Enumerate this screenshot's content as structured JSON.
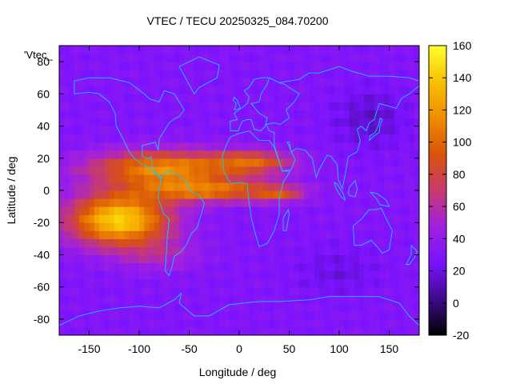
{
  "chart_data": {
    "type": "heatmap",
    "title": "VTEC / TECU 20250325_084.70200",
    "xlabel": "Longitude / deg",
    "ylabel": "Latitude / deg",
    "key_label": "'Vtec_",
    "xlim": [
      -180,
      180
    ],
    "ylim": [
      -90,
      90
    ],
    "xticks": [
      -150,
      -100,
      -50,
      0,
      50,
      100,
      150
    ],
    "yticks": [
      -80,
      -60,
      -40,
      -20,
      0,
      20,
      40,
      60,
      80
    ],
    "colorbar": {
      "range": [
        -20,
        160
      ],
      "ticks": [
        -20,
        0,
        20,
        40,
        60,
        80,
        100,
        120,
        140,
        160
      ],
      "palette": [
        "#000000",
        "#3d0b8a",
        "#7a12ff",
        "#a020e0",
        "#c73a6e",
        "#d9540a",
        "#ef8c00",
        "#f8c000",
        "#ffff30"
      ]
    },
    "grid_step_deg": 5,
    "background_vtec": 30,
    "features": [
      {
        "name": "south-america-peak",
        "lon": -120,
        "lat": -18,
        "amplitude": 115,
        "sigma_lon": 50,
        "sigma_lat": 16
      },
      {
        "name": "north-equatorial-band",
        "lon": -75,
        "lat": 14,
        "amplitude": 85,
        "sigma_lon": 75,
        "sigma_lat": 11
      },
      {
        "name": "equatorial-band",
        "lon": -30,
        "lat": 0,
        "amplitude": 70,
        "sigma_lon": 70,
        "sigma_lat": 7
      },
      {
        "name": "africa-north-tongue",
        "lon": 15,
        "lat": 18,
        "amplitude": 55,
        "sigma_lon": 40,
        "sigma_lat": 7
      },
      {
        "name": "africa-equatorial-tongue",
        "lon": 40,
        "lat": -2,
        "amplitude": 40,
        "sigma_lon": 25,
        "sigma_lat": 5
      },
      {
        "name": "southern-hemisphere-arc",
        "lon": -80,
        "lat": -40,
        "amplitude": 22,
        "sigma_lon": 40,
        "sigma_lat": 10
      },
      {
        "name": "east-asia-low",
        "lon": 130,
        "lat": 45,
        "amplitude": -15,
        "sigma_lon": 35,
        "sigma_lat": 18
      },
      {
        "name": "south-indian-low",
        "lon": 100,
        "lat": -50,
        "amplitude": -10,
        "sigma_lon": 40,
        "sigma_lat": 15
      }
    ],
    "coastlines": [
      {
        "name": "north-america",
        "points": [
          [
            -165,
            60
          ],
          [
            -150,
            61
          ],
          [
            -140,
            60
          ],
          [
            -130,
            55
          ],
          [
            -124,
            48
          ],
          [
            -123,
            40
          ],
          [
            -117,
            33
          ],
          [
            -110,
            24
          ],
          [
            -105,
            20
          ],
          [
            -97,
            16
          ],
          [
            -92,
            15
          ],
          [
            -85,
            11
          ],
          [
            -80,
            8
          ],
          [
            -77,
            8
          ],
          [
            -82,
            10
          ],
          [
            -87,
            15
          ],
          [
            -88,
            21
          ],
          [
            -90,
            20
          ],
          [
            -97,
            21
          ],
          [
            -97,
            28
          ],
          [
            -90,
            29
          ],
          [
            -84,
            30
          ],
          [
            -81,
            25
          ],
          [
            -80,
            32
          ],
          [
            -75,
            37
          ],
          [
            -70,
            42
          ],
          [
            -66,
            44
          ],
          [
            -60,
            46
          ],
          [
            -55,
            50
          ],
          [
            -60,
            55
          ],
          [
            -65,
            60
          ],
          [
            -75,
            62
          ],
          [
            -80,
            55
          ],
          [
            -90,
            57
          ],
          [
            -95,
            60
          ],
          [
            -110,
            67
          ],
          [
            -130,
            70
          ],
          [
            -150,
            70
          ],
          [
            -165,
            68
          ],
          [
            -165,
            60
          ]
        ]
      },
      {
        "name": "south-america",
        "points": [
          [
            -78,
            8
          ],
          [
            -72,
            12
          ],
          [
            -63,
            10
          ],
          [
            -52,
            5
          ],
          [
            -50,
            0
          ],
          [
            -40,
            -3
          ],
          [
            -35,
            -8
          ],
          [
            -38,
            -15
          ],
          [
            -42,
            -23
          ],
          [
            -48,
            -27
          ],
          [
            -53,
            -34
          ],
          [
            -58,
            -38
          ],
          [
            -65,
            -41
          ],
          [
            -67,
            -47
          ],
          [
            -70,
            -53
          ],
          [
            -74,
            -50
          ],
          [
            -73,
            -40
          ],
          [
            -72,
            -30
          ],
          [
            -70,
            -18
          ],
          [
            -76,
            -14
          ],
          [
            -81,
            -5
          ],
          [
            -80,
            0
          ],
          [
            -78,
            8
          ]
        ]
      },
      {
        "name": "greenland",
        "points": [
          [
            -60,
            77
          ],
          [
            -45,
            60
          ],
          [
            -40,
            64
          ],
          [
            -22,
            70
          ],
          [
            -20,
            78
          ],
          [
            -40,
            83
          ],
          [
            -60,
            77
          ]
        ]
      },
      {
        "name": "africa",
        "points": [
          [
            -17,
            21
          ],
          [
            -13,
            28
          ],
          [
            -9,
            33
          ],
          [
            -2,
            35
          ],
          [
            10,
            37
          ],
          [
            20,
            31
          ],
          [
            30,
            31
          ],
          [
            35,
            27
          ],
          [
            43,
            12
          ],
          [
            51,
            12
          ],
          [
            44,
            5
          ],
          [
            40,
            -5
          ],
          [
            40,
            -15
          ],
          [
            35,
            -25
          ],
          [
            28,
            -33
          ],
          [
            20,
            -35
          ],
          [
            17,
            -29
          ],
          [
            12,
            -17
          ],
          [
            9,
            -3
          ],
          [
            8,
            4
          ],
          [
            0,
            5
          ],
          [
            -8,
            4
          ],
          [
            -15,
            11
          ],
          [
            -17,
            21
          ]
        ]
      },
      {
        "name": "madagascar",
        "points": [
          [
            44,
            -25
          ],
          [
            47,
            -25
          ],
          [
            50,
            -15
          ],
          [
            49,
            -12
          ],
          [
            44,
            -17
          ],
          [
            44,
            -25
          ]
        ]
      },
      {
        "name": "europe",
        "points": [
          [
            -9,
            37
          ],
          [
            -9,
            43
          ],
          [
            -2,
            44
          ],
          [
            -5,
            48
          ],
          [
            2,
            51
          ],
          [
            8,
            54
          ],
          [
            10,
            58
          ],
          [
            5,
            62
          ],
          [
            10,
            64
          ],
          [
            15,
            69
          ],
          [
            22,
            70
          ],
          [
            30,
            70
          ],
          [
            28,
            66
          ],
          [
            22,
            60
          ],
          [
            20,
            55
          ],
          [
            12,
            54
          ],
          [
            20,
            48
          ],
          [
            28,
            45
          ],
          [
            26,
            40
          ],
          [
            22,
            37
          ],
          [
            15,
            38
          ],
          [
            12,
            44
          ],
          [
            8,
            44
          ],
          [
            3,
            43
          ],
          [
            -1,
            37
          ],
          [
            -9,
            37
          ]
        ]
      },
      {
        "name": "asia",
        "points": [
          [
            30,
            70
          ],
          [
            40,
            67
          ],
          [
            60,
            69
          ],
          [
            70,
            73
          ],
          [
            80,
            73
          ],
          [
            100,
            77
          ],
          [
            113,
            74
          ],
          [
            130,
            71
          ],
          [
            150,
            71
          ],
          [
            170,
            70
          ],
          [
            180,
            68
          ],
          [
            180,
            65
          ],
          [
            170,
            60
          ],
          [
            162,
            57
          ],
          [
            157,
            51
          ],
          [
            140,
            54
          ],
          [
            135,
            44
          ],
          [
            130,
            42
          ],
          [
            127,
            37
          ],
          [
            122,
            40
          ],
          [
            118,
            38
          ],
          [
            121,
            31
          ],
          [
            118,
            24
          ],
          [
            109,
            21
          ],
          [
            106,
            10
          ],
          [
            103,
            1
          ],
          [
            99,
            7
          ],
          [
            98,
            16
          ],
          [
            92,
            21
          ],
          [
            88,
            22
          ],
          [
            80,
            13
          ],
          [
            77,
            8
          ],
          [
            73,
            20
          ],
          [
            70,
            22
          ],
          [
            66,
            25
          ],
          [
            57,
            26
          ],
          [
            52,
            24
          ],
          [
            50,
            30
          ],
          [
            48,
            30
          ],
          [
            56,
            19
          ],
          [
            52,
            13
          ],
          [
            43,
            12
          ],
          [
            35,
            28
          ],
          [
            35,
            36
          ],
          [
            30,
            37
          ],
          [
            27,
            41
          ],
          [
            35,
            42
          ],
          [
            41,
            41
          ],
          [
            50,
            45
          ],
          [
            47,
            50
          ],
          [
            55,
            55
          ],
          [
            60,
            60
          ],
          [
            45,
            66
          ],
          [
            40,
            67
          ],
          [
            30,
            70
          ]
        ]
      },
      {
        "name": "australia",
        "points": [
          [
            114,
            -22
          ],
          [
            122,
            -18
          ],
          [
            130,
            -12
          ],
          [
            137,
            -12
          ],
          [
            142,
            -11
          ],
          [
            145,
            -15
          ],
          [
            153,
            -25
          ],
          [
            150,
            -37
          ],
          [
            143,
            -39
          ],
          [
            138,
            -35
          ],
          [
            132,
            -31
          ],
          [
            122,
            -34
          ],
          [
            115,
            -34
          ],
          [
            114,
            -22
          ]
        ]
      },
      {
        "name": "new-zealand",
        "points": [
          [
            172,
            -34
          ],
          [
            178,
            -38
          ],
          [
            175,
            -42
          ],
          [
            170,
            -46
          ],
          [
            167,
            -46
          ],
          [
            172,
            -40
          ],
          [
            172,
            -34
          ]
        ]
      },
      {
        "name": "japan",
        "points": [
          [
            130,
            31
          ],
          [
            135,
            34
          ],
          [
            140,
            36
          ],
          [
            141,
            41
          ],
          [
            143,
            44
          ],
          [
            141,
            45
          ],
          [
            139,
            40
          ],
          [
            136,
            36
          ],
          [
            131,
            34
          ],
          [
            130,
            31
          ]
        ]
      },
      {
        "name": "great-britain",
        "points": [
          [
            -5,
            50
          ],
          [
            1,
            51
          ],
          [
            0,
            53
          ],
          [
            -2,
            56
          ],
          [
            -5,
            58
          ],
          [
            -6,
            56
          ],
          [
            -3,
            54
          ],
          [
            -5,
            50
          ]
        ]
      },
      {
        "name": "indonesia-sumatra",
        "points": [
          [
            95,
            5
          ],
          [
            98,
            4
          ],
          [
            104,
            -2
          ],
          [
            106,
            -6
          ],
          [
            102,
            -4
          ],
          [
            97,
            1
          ],
          [
            95,
            5
          ]
        ]
      },
      {
        "name": "borneo",
        "points": [
          [
            109,
            -2
          ],
          [
            110,
            2
          ],
          [
            116,
            6
          ],
          [
            118,
            1
          ],
          [
            116,
            -4
          ],
          [
            110,
            -3
          ],
          [
            109,
            -2
          ]
        ]
      },
      {
        "name": "new-guinea",
        "points": [
          [
            131,
            -1
          ],
          [
            138,
            -2
          ],
          [
            147,
            -6
          ],
          [
            150,
            -10
          ],
          [
            141,
            -9
          ],
          [
            137,
            -5
          ],
          [
            131,
            -1
          ]
        ]
      },
      {
        "name": "antarctica",
        "points": [
          [
            -180,
            -84
          ],
          [
            -160,
            -78
          ],
          [
            -140,
            -75
          ],
          [
            -120,
            -73
          ],
          [
            -100,
            -72
          ],
          [
            -80,
            -73
          ],
          [
            -65,
            -68
          ],
          [
            -58,
            -64
          ],
          [
            -60,
            -70
          ],
          [
            -45,
            -78
          ],
          [
            -30,
            -78
          ],
          [
            -10,
            -71
          ],
          [
            20,
            -69
          ],
          [
            40,
            -69
          ],
          [
            70,
            -68
          ],
          [
            90,
            -66
          ],
          [
            120,
            -66
          ],
          [
            140,
            -66
          ],
          [
            160,
            -70
          ],
          [
            170,
            -78
          ],
          [
            180,
            -84
          ]
        ]
      }
    ]
  }
}
